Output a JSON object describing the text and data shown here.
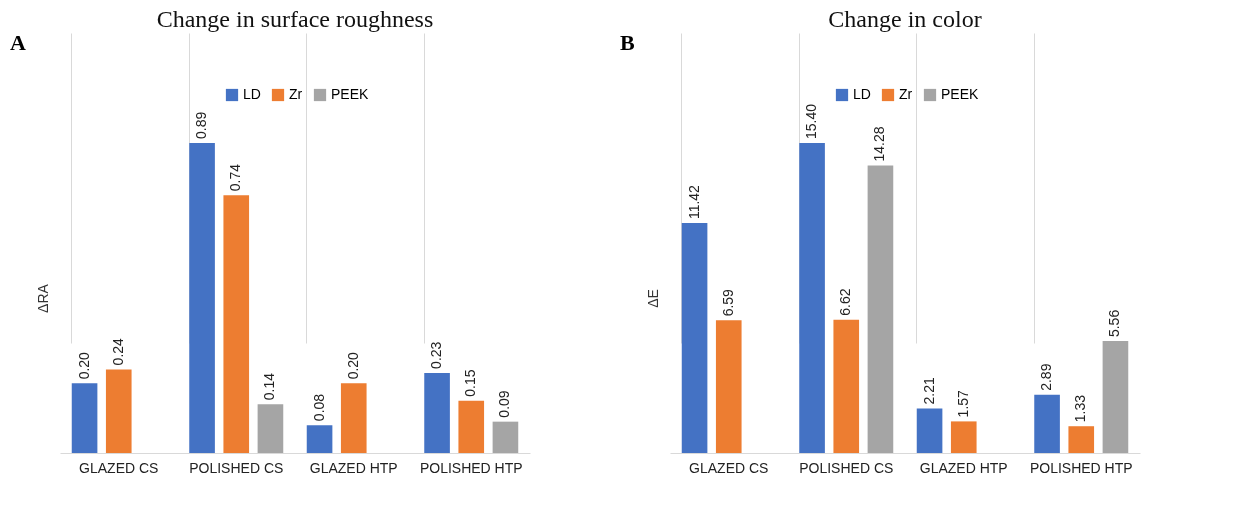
{
  "chart_data": [
    {
      "type": "bar",
      "title": "Change in surface roughness",
      "ylabel": "ΔRA",
      "annotations": [
        "A"
      ],
      "categories": [
        "GLAZED  CS",
        "POLISHED  CS",
        "GLAZED  HTP",
        "POLISHED  HTP"
      ],
      "series": [
        {
          "name": "LD",
          "color": "#4472c4",
          "values": [
            0.2,
            0.89,
            0.08,
            0.23
          ],
          "value_labels": [
            "0.20",
            "0.89",
            "0.08",
            "0.23"
          ]
        },
        {
          "name": "Zr",
          "color": "#ed7d31",
          "values": [
            0.24,
            0.74,
            0.2,
            0.15
          ],
          "value_labels": [
            "0.24",
            "0.74",
            "0.20",
            "0.15"
          ]
        },
        {
          "name": "PEEK",
          "color": "#a5a5a5",
          "values": [
            null,
            0.14,
            null,
            0.09
          ],
          "value_labels": [
            null,
            "0.14",
            null,
            "0.09"
          ]
        }
      ],
      "legend": "top",
      "grid": "x"
    },
    {
      "type": "bar",
      "title": "Change in color",
      "ylabel": "ΔE",
      "annotations": [
        "B"
      ],
      "categories": [
        "GLAZED  CS",
        "POLISHED  CS",
        "GLAZED  HTP",
        "POLISHED  HTP"
      ],
      "series": [
        {
          "name": "LD",
          "color": "#4472c4",
          "values": [
            11.42,
            15.4,
            2.21,
            2.89
          ],
          "value_labels": [
            "11.42",
            "15.40",
            "2.21",
            "2.89"
          ]
        },
        {
          "name": "Zr",
          "color": "#ed7d31",
          "values": [
            6.59,
            6.62,
            1.57,
            1.33
          ],
          "value_labels": [
            "6.59",
            "6.62",
            "1.57",
            "1.33"
          ]
        },
        {
          "name": "PEEK",
          "color": "#a5a5a5",
          "values": [
            null,
            14.28,
            null,
            5.56
          ],
          "value_labels": [
            null,
            "14.28",
            null,
            "5.56"
          ]
        }
      ],
      "legend": "top",
      "grid": "x"
    }
  ]
}
